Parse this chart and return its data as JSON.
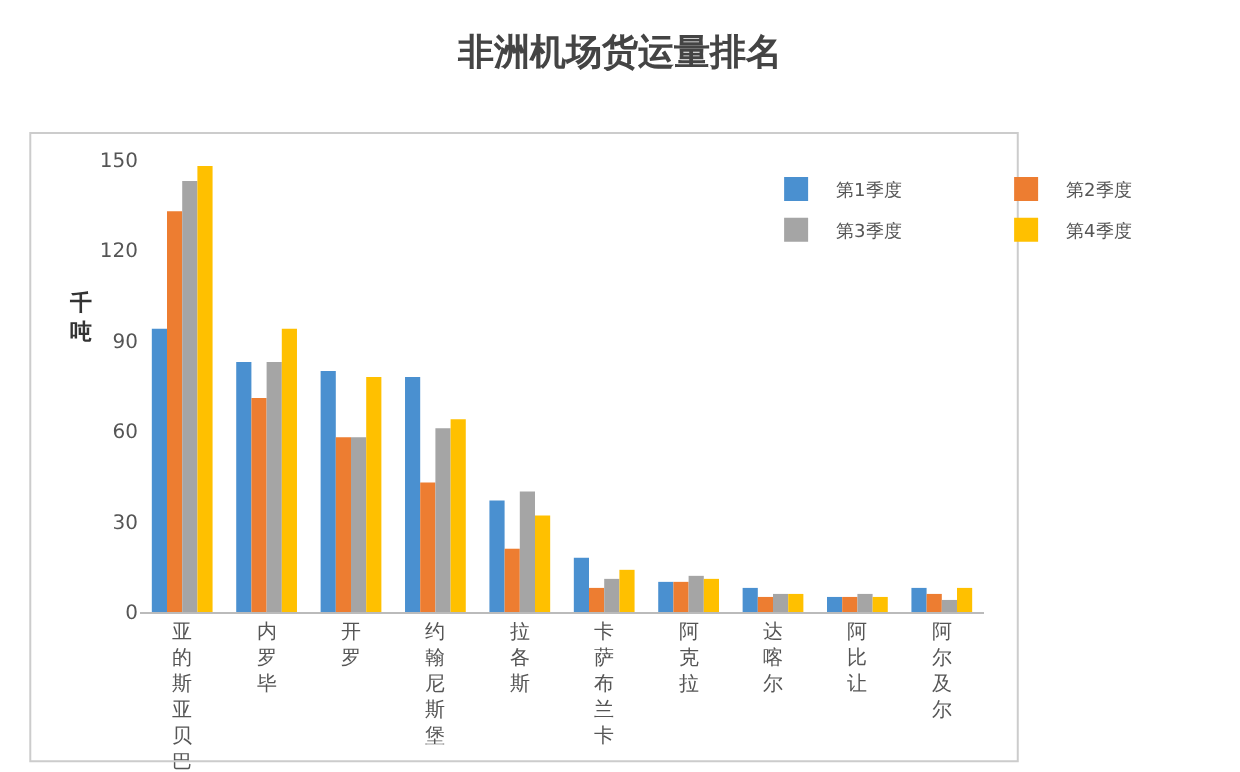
{
  "chart_data": {
    "type": "bar",
    "title": "非洲机场货运量排名",
    "ylabel": "千吨",
    "categories": [
      "亚的斯亚贝巴",
      "内罗毕",
      "开罗",
      "约翰尼斯堡",
      "拉各斯",
      "卡萨布兰卡",
      "阿克拉",
      "达喀尔",
      "阿比让",
      "阿尔及尔"
    ],
    "series": [
      {
        "name": "第1季度",
        "color": "#4a90d0",
        "values": [
          94,
          83,
          80,
          78,
          37,
          18,
          10,
          8,
          5,
          8
        ]
      },
      {
        "name": "第2季度",
        "color": "#ed7d31",
        "values": [
          133,
          71,
          58,
          43,
          21,
          8,
          10,
          5,
          5,
          6
        ]
      },
      {
        "name": "第3季度",
        "color": "#a5a5a5",
        "values": [
          143,
          83,
          58,
          61,
          40,
          11,
          12,
          6,
          6,
          4
        ]
      },
      {
        "name": "第4季度",
        "color": "#ffc000",
        "values": [
          148,
          94,
          78,
          64,
          32,
          14,
          11,
          6,
          5,
          8
        ]
      }
    ],
    "ylim": [
      0,
      150
    ],
    "yticks": [
      0,
      30,
      60,
      90,
      120,
      150
    ],
    "grid": false,
    "legend": "top right"
  }
}
